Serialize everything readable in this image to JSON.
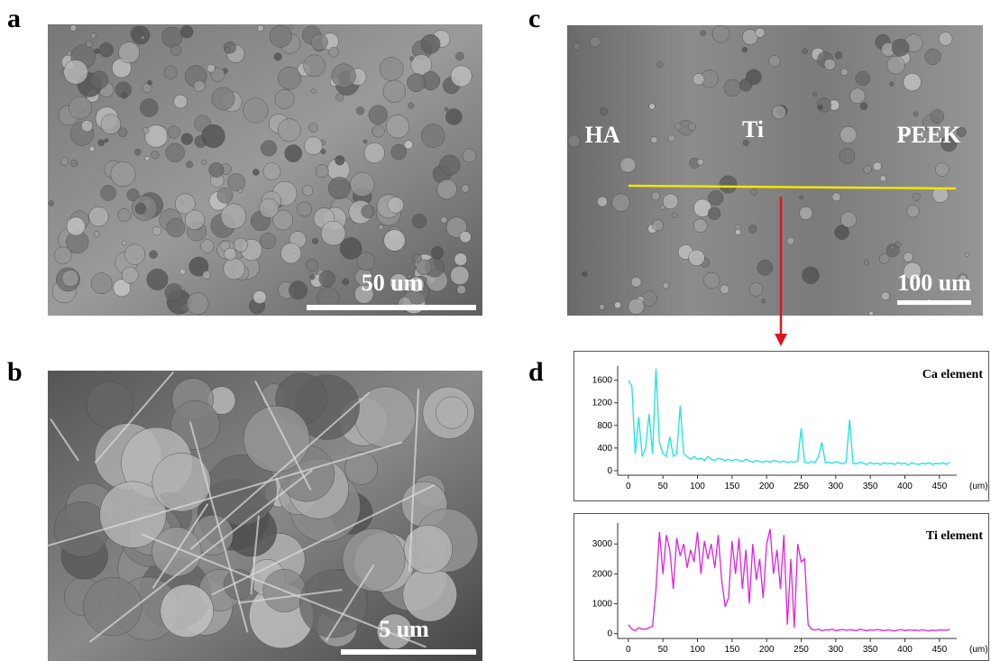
{
  "panels": {
    "a": "a",
    "b": "b",
    "c": "c",
    "d": "d"
  },
  "images": {
    "a": {
      "scale_bar": "50 um"
    },
    "b": {
      "scale_bar": "5 um"
    },
    "c": {
      "regions": [
        "HA",
        "Ti",
        "PEEK"
      ],
      "scale_bar": "100 um"
    }
  },
  "chart_data": [
    {
      "type": "line",
      "xlabel": "(um)",
      "x": [
        0,
        5,
        10,
        15,
        20,
        25,
        30,
        35,
        40,
        45,
        50,
        55,
        60,
        65,
        70,
        75,
        80,
        85,
        90,
        95,
        100,
        105,
        110,
        115,
        120,
        125,
        130,
        135,
        140,
        145,
        150,
        155,
        160,
        165,
        170,
        175,
        180,
        185,
        190,
        195,
        200,
        205,
        210,
        215,
        220,
        225,
        230,
        235,
        240,
        245,
        250,
        255,
        260,
        265,
        270,
        275,
        280,
        285,
        290,
        295,
        300,
        305,
        310,
        315,
        320,
        325,
        330,
        335,
        340,
        345,
        350,
        355,
        360,
        365,
        370,
        375,
        380,
        385,
        390,
        395,
        400,
        405,
        410,
        415,
        420,
        425,
        430,
        435,
        440,
        445,
        450,
        455,
        460,
        465
      ],
      "series": [
        {
          "name": "Ca element",
          "color": "#19e3e3",
          "values": [
            1600,
            1500,
            300,
            950,
            250,
            400,
            1000,
            300,
            1800,
            500,
            300,
            250,
            600,
            250,
            300,
            1150,
            300,
            250,
            200,
            250,
            200,
            220,
            180,
            250,
            200,
            180,
            220,
            200,
            180,
            200,
            170,
            200,
            180,
            160,
            200,
            170,
            150,
            180,
            160,
            150,
            170,
            150,
            180,
            160,
            150,
            170,
            140,
            160,
            150,
            170,
            750,
            150,
            130,
            160,
            140,
            250,
            500,
            140,
            150,
            130,
            160,
            140,
            120,
            150,
            900,
            130,
            120,
            150,
            130,
            110,
            140,
            120,
            130,
            110,
            140,
            120,
            130,
            110,
            140,
            120,
            130,
            100,
            140,
            120,
            110,
            130,
            120,
            140,
            110,
            130,
            120,
            140,
            110,
            150
          ]
        }
      ],
      "xlim": [
        -5,
        475
      ],
      "xticks": [
        0,
        50,
        100,
        150,
        200,
        250,
        300,
        350,
        400,
        450
      ],
      "ylim": [
        -50,
        1850
      ],
      "yticks": [
        0,
        400,
        800,
        1200,
        1600
      ]
    },
    {
      "type": "line",
      "xlabel": "(um)",
      "x": [
        0,
        5,
        10,
        15,
        20,
        25,
        30,
        35,
        40,
        45,
        50,
        55,
        60,
        65,
        70,
        75,
        80,
        85,
        90,
        95,
        100,
        105,
        110,
        115,
        120,
        125,
        130,
        135,
        140,
        145,
        150,
        155,
        160,
        165,
        170,
        175,
        180,
        185,
        190,
        195,
        200,
        205,
        210,
        215,
        220,
        225,
        230,
        235,
        240,
        245,
        250,
        255,
        260,
        265,
        270,
        275,
        280,
        285,
        290,
        295,
        300,
        305,
        310,
        315,
        320,
        325,
        330,
        335,
        340,
        345,
        350,
        355,
        360,
        365,
        370,
        375,
        380,
        385,
        390,
        395,
        400,
        405,
        410,
        415,
        420,
        425,
        430,
        435,
        440,
        445,
        450,
        455,
        460,
        465
      ],
      "series": [
        {
          "name": "Ti element",
          "color": "#e020e0",
          "values": [
            300,
            150,
            100,
            200,
            150,
            150,
            200,
            250,
            1500,
            3400,
            2000,
            3300,
            2800,
            1500,
            3200,
            2600,
            3000,
            2200,
            2800,
            2400,
            3400,
            2000,
            3100,
            2500,
            3000,
            2200,
            3300,
            1800,
            900,
            1200,
            3100,
            2000,
            3200,
            1500,
            2800,
            1000,
            3000,
            1800,
            2500,
            1200,
            3000,
            3500,
            2000,
            2800,
            1500,
            3300,
            300,
            2500,
            200,
            3000,
            2400,
            2500,
            300,
            150,
            120,
            150,
            100,
            130,
            120,
            150,
            100,
            120,
            140,
            110,
            130,
            120,
            100,
            150,
            120,
            100,
            130,
            110,
            140,
            120,
            100,
            130,
            110,
            90,
            120,
            140,
            100,
            130,
            110,
            120,
            100,
            130,
            110,
            90,
            120,
            100,
            130,
            120,
            110,
            150
          ]
        }
      ],
      "xlim": [
        -5,
        475
      ],
      "xticks": [
        0,
        50,
        100,
        150,
        200,
        250,
        300,
        350,
        400,
        450
      ],
      "ylim": [
        -100,
        3700
      ],
      "yticks": [
        0,
        1000,
        2000,
        3000
      ]
    }
  ]
}
